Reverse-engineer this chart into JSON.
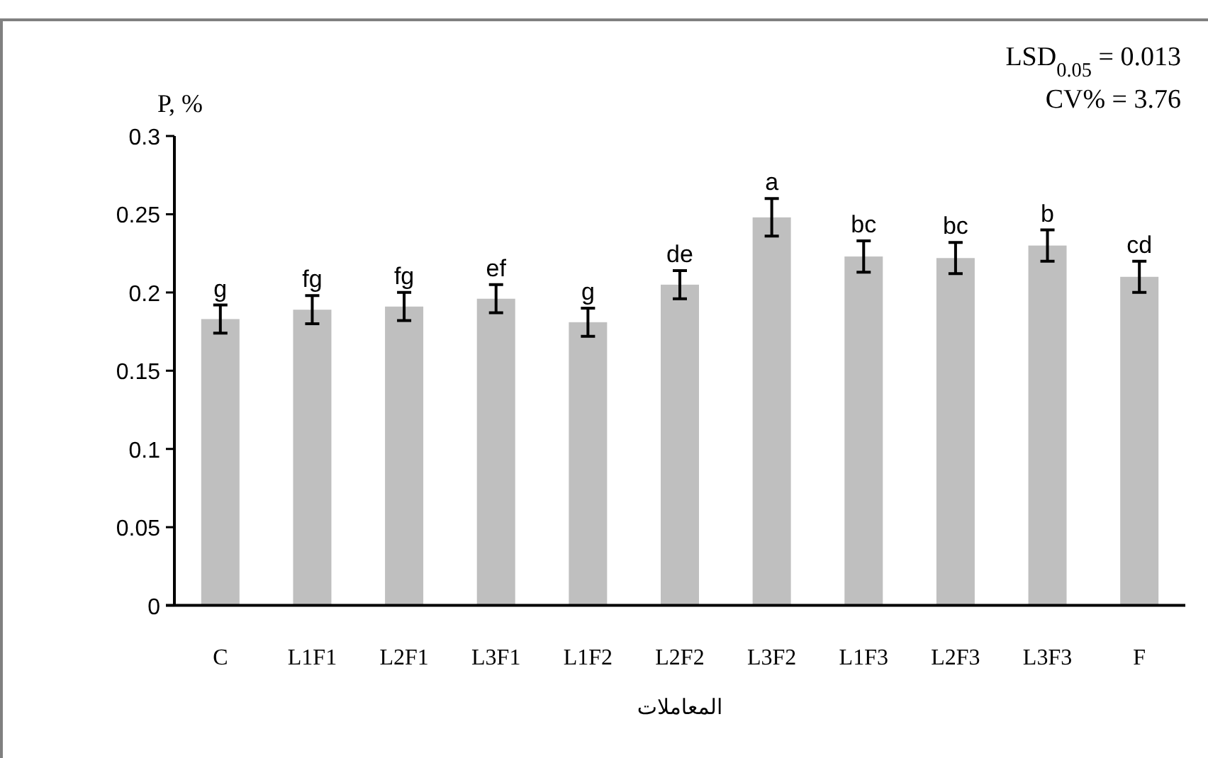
{
  "chart_data": {
    "type": "bar",
    "xlabel": "المعاملات",
    "ylabel": "P, %",
    "categories": [
      "C",
      "L1F1",
      "L2F1",
      "L3F1",
      "L1F2",
      "L2F2",
      "L3F2",
      "L1F3",
      "L2F3",
      "L3F3",
      "F"
    ],
    "values": [
      0.183,
      0.189,
      0.191,
      0.196,
      0.181,
      0.205,
      0.248,
      0.223,
      0.222,
      0.23,
      0.21
    ],
    "errors": [
      0.009,
      0.009,
      0.009,
      0.009,
      0.009,
      0.009,
      0.012,
      0.01,
      0.01,
      0.01,
      0.01
    ],
    "color": "#bfbfbf",
    "ylim": [
      0,
      0.3
    ],
    "yticks": [
      0,
      0.05,
      0.1,
      0.15,
      0.2,
      0.25,
      0.3
    ],
    "grid": false,
    "legend": false,
    "annotations": [
      {
        "text": "g",
        "x": "C",
        "y": 0.192
      },
      {
        "text": "fg",
        "x": "L1F1",
        "y": 0.198
      },
      {
        "text": "fg",
        "x": "L2F1",
        "y": 0.2
      },
      {
        "text": "ef",
        "x": "L3F1",
        "y": 0.205
      },
      {
        "text": "g",
        "x": "L1F2",
        "y": 0.19
      },
      {
        "text": "de",
        "x": "L2F2",
        "y": 0.214
      },
      {
        "text": "a",
        "x": "L3F2",
        "y": 0.26
      },
      {
        "text": "bc",
        "x": "L1F3",
        "y": 0.233
      },
      {
        "text": "bc",
        "x": "L2F3",
        "y": 0.232
      },
      {
        "text": "b",
        "x": "L3F3",
        "y": 0.24
      },
      {
        "text": "cd",
        "x": "F",
        "y": 0.22
      },
      "LSD$_{0.05}$ = 0.013",
      "CV% = 3.76"
    ]
  }
}
